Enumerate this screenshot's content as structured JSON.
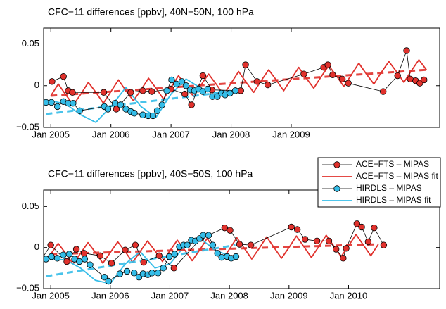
{
  "chart_data": [
    {
      "type": "line",
      "title": "CFC−11 differences [ppbv], 40N−50N, 100 hPa",
      "xlim": [
        2004.88,
        2011.47
      ],
      "ylim": [
        -0.05,
        0.069
      ],
      "xticks": [
        {
          "value": 2005,
          "label": "Jan 2005"
        },
        {
          "value": 2006,
          "label": "Jan 2006"
        },
        {
          "value": 2007,
          "label": "Jan 2007"
        },
        {
          "value": 2008,
          "label": "Jan 2008"
        },
        {
          "value": 2009,
          "label": "Jan 2009"
        }
      ],
      "yticks": [
        {
          "value": -0.05,
          "label": "−0.05"
        },
        0,
        0.05
      ],
      "series": [
        {
          "name": "ACE−FTS – MIPAS",
          "style": "markers",
          "color": "#e0312c",
          "x": [
            2005.02,
            2005.21,
            2005.29,
            2005.36,
            2005.88,
            2006.09,
            2006.33,
            2006.53,
            2006.68,
            2007.0,
            2007.23,
            2007.34,
            2007.53,
            2007.68,
            2008.16,
            2008.24,
            2008.43,
            2008.61,
            2009.21,
            2009.54,
            2009.61,
            2009.69,
            2009.85,
            2009.95,
            2010.53,
            2010.77,
            2010.92,
            2010.98,
            2011.07,
            2011.14,
            2011.21
          ],
          "values": [
            0.005,
            0.011,
            -0.006,
            -0.008,
            -0.008,
            -0.028,
            -0.008,
            -0.006,
            -0.007,
            -0.004,
            -0.01,
            -0.023,
            0.012,
            -0.005,
            -0.006,
            0.025,
            0.005,
            0.001,
            0.014,
            0.022,
            0.025,
            0.013,
            0.008,
            0.003,
            -0.007,
            0.012,
            0.042,
            0.008,
            0.006,
            0.003,
            0.007
          ]
        },
        {
          "name": "ACE−FTS – MIPAS fit",
          "style": "solid",
          "color": "#e0312c",
          "x": [
            2005.0,
            2005.125,
            2005.25,
            2005.375,
            2005.5,
            2005.625,
            2005.75,
            2005.875,
            2006.0,
            2006.125,
            2006.25,
            2006.375,
            2006.5,
            2006.625,
            2006.75,
            2006.875,
            2007.0,
            2007.125,
            2007.25,
            2007.375,
            2007.5,
            2007.625,
            2007.75,
            2007.875,
            2008.0,
            2008.125,
            2008.25,
            2008.375,
            2008.5,
            2008.625,
            2008.75,
            2008.875,
            2009.0,
            2009.125,
            2009.25,
            2009.375,
            2009.5,
            2009.625,
            2009.75,
            2009.875,
            2010.0,
            2010.125,
            2010.25,
            2010.375,
            2010.5,
            2010.625,
            2010.75,
            2010.875,
            2011.0,
            2011.125,
            2011.25
          ],
          "values": [
            -0.012,
            0.002,
            -0.011,
            -0.023,
            -0.01,
            0.004,
            -0.008,
            -0.021,
            -0.007,
            0.007,
            -0.006,
            -0.018,
            -0.005,
            0.009,
            -0.003,
            -0.016,
            -0.002,
            0.012,
            -0.001,
            -0.013,
            0.001,
            0.014,
            0.002,
            -0.011,
            0.003,
            0.017,
            0.004,
            -0.008,
            0.006,
            0.019,
            0.007,
            -0.006,
            0.008,
            0.022,
            0.009,
            -0.003,
            0.011,
            0.024,
            0.012,
            -0.001,
            0.013,
            0.027,
            0.014,
            0.002,
            0.016,
            0.029,
            0.017,
            0.004,
            0.018,
            0.031,
            0.019
          ]
        },
        {
          "style": "dashed",
          "color": "#e0312c",
          "x": [
            2005.0,
            2011.25
          ],
          "values": [
            -0.012,
            0.019
          ]
        },
        {
          "name": "HIRDLS – MIPAS",
          "style": "markers",
          "color": "#35bde8",
          "x": [
            2004.92,
            2005.01,
            2005.11,
            2005.21,
            2005.29,
            2005.37,
            2005.48,
            2005.89,
            2005.95,
            2006.07,
            2006.16,
            2006.25,
            2006.33,
            2006.39,
            2006.53,
            2006.62,
            2006.7,
            2006.77,
            2006.85,
            2006.93,
            2007.01,
            2007.09,
            2007.18,
            2007.25,
            2007.32,
            2007.39,
            2007.46,
            2007.53,
            2007.61,
            2007.69,
            2007.77,
            2007.84,
            2007.9,
            2007.98,
            2008.07
          ],
          "values": [
            -0.02,
            -0.02,
            -0.025,
            -0.019,
            -0.021,
            -0.021,
            -0.03,
            -0.025,
            -0.028,
            -0.021,
            -0.023,
            -0.028,
            -0.031,
            -0.033,
            -0.035,
            -0.036,
            -0.036,
            -0.03,
            -0.023,
            -0.006,
            0.007,
            0.002,
            0.005,
            0.0,
            -0.005,
            -0.006,
            -0.004,
            -0.007,
            -0.004,
            -0.013,
            -0.013,
            -0.009,
            -0.011,
            -0.009,
            -0.006
          ]
        },
        {
          "name": "HIRDLS – MIPAS fit",
          "style": "solid",
          "color": "#35bde8",
          "x": [
            2005.0,
            2005.25,
            2005.5,
            2005.75,
            2006.0,
            2006.25,
            2006.5,
            2006.75,
            2007.0,
            2007.25,
            2007.5,
            2007.75,
            2007.9
          ],
          "values": [
            -0.018,
            -0.022,
            -0.035,
            -0.044,
            -0.025,
            -0.002,
            -0.025,
            -0.038,
            -0.01,
            0.008,
            -0.003,
            -0.008,
            -0.006
          ]
        },
        {
          "style": "dashed",
          "color": "#35bde8",
          "x": [
            2004.92,
            2008.2
          ],
          "values": [
            -0.034,
            -0.005
          ]
        }
      ]
    },
    {
      "type": "line",
      "title": "CFC−11 differences [ppbv], 40S−50S, 100 hPa",
      "xlim": [
        2004.88,
        2011.53
      ],
      "ylim": [
        -0.05,
        0.07
      ],
      "xticks": [
        {
          "value": 2005,
          "label": "Jan 2005"
        },
        {
          "value": 2006,
          "label": "Jan 2006"
        },
        {
          "value": 2007,
          "label": "Jan 2007"
        },
        {
          "value": 2008,
          "label": "Jan 2008"
        },
        {
          "value": 2009,
          "label": "Jan 2009"
        },
        {
          "value": 2010,
          "label": "Jan 2010"
        }
      ],
      "yticks": [
        {
          "value": -0.05,
          "label": "−0.05"
        },
        0,
        0.05
      ],
      "legend": "upper right",
      "series": [
        {
          "name": "ACE−FTS – MIPAS",
          "style": "markers",
          "color": "#e0312c",
          "x": [
            2004.82,
            2005.0,
            2005.27,
            2005.43,
            2005.56,
            2005.83,
            2006.02,
            2006.25,
            2006.42,
            2006.56,
            2006.82,
            2007.07,
            2007.52,
            2007.92,
            2008.01,
            2008.17,
            2008.36,
            2009.04,
            2009.14,
            2009.27,
            2009.47,
            2009.67,
            2009.79,
            2009.91,
            2009.96,
            2010.14,
            2010.22,
            2010.33,
            2010.43,
            2010.59
          ],
          "values": [
            -0.017,
            0.003,
            -0.017,
            -0.002,
            -0.007,
            -0.01,
            -0.019,
            -0.003,
            0.003,
            -0.018,
            -0.01,
            -0.025,
            0.011,
            0.024,
            0.021,
            0.004,
            0.003,
            0.025,
            0.022,
            0.01,
            0.008,
            0.008,
            -0.002,
            -0.013,
            -0.001,
            0.029,
            0.025,
            0.007,
            0.024,
            0.003
          ]
        },
        {
          "name": "ACE−FTS – MIPAS fit",
          "style": "solid",
          "color": "#e0312c",
          "x": [
            2005.0,
            2005.125,
            2005.25,
            2005.375,
            2005.5,
            2005.625,
            2005.75,
            2005.875,
            2006.0,
            2006.125,
            2006.25,
            2006.375,
            2006.5,
            2006.625,
            2006.75,
            2006.875,
            2007.0,
            2007.125,
            2007.25,
            2007.375,
            2007.5,
            2007.625,
            2007.75,
            2007.875,
            2008.0,
            2008.125,
            2008.25,
            2008.375,
            2008.5,
            2008.625,
            2008.75,
            2008.875,
            2009.0,
            2009.125,
            2009.25,
            2009.375,
            2009.5,
            2009.625,
            2009.75,
            2009.875,
            2010.0,
            2010.125,
            2010.25,
            2010.375,
            2010.5
          ],
          "values": [
            -0.008,
            0.005,
            -0.007,
            -0.02,
            -0.007,
            0.006,
            -0.006,
            -0.019,
            -0.006,
            0.007,
            -0.005,
            -0.018,
            -0.005,
            0.008,
            -0.004,
            -0.017,
            -0.004,
            0.009,
            -0.003,
            -0.016,
            -0.003,
            0.011,
            -0.002,
            -0.015,
            -0.002,
            0.012,
            -0.001,
            -0.014,
            -0.001,
            0.013,
            0.0,
            -0.013,
            0.0,
            0.014,
            0.001,
            -0.012,
            0.001,
            0.015,
            0.002,
            -0.011,
            0.002,
            0.016,
            0.003,
            -0.01,
            0.004
          ]
        },
        {
          "style": "dashed",
          "color": "#e0312c",
          "x": [
            2005.0,
            2010.5
          ],
          "values": [
            -0.008,
            0.004
          ]
        },
        {
          "name": "HIRDLS – MIPAS",
          "style": "markers",
          "color": "#35bde8",
          "x": [
            2004.92,
            2005.01,
            2005.11,
            2005.21,
            2005.31,
            2005.4,
            2005.48,
            2005.57,
            2005.66,
            2005.9,
            2005.97,
            2006.16,
            2006.28,
            2006.4,
            2006.48,
            2006.55,
            2006.63,
            2006.7,
            2006.8,
            2006.89,
            2006.99,
            2007.08,
            2007.16,
            2007.23,
            2007.29,
            2007.36,
            2007.43,
            2007.5,
            2007.56,
            2007.65,
            2007.72,
            2007.8,
            2007.87,
            2007.96,
            2008.03,
            2008.11
          ],
          "values": [
            -0.014,
            -0.011,
            -0.013,
            -0.009,
            -0.008,
            -0.014,
            -0.017,
            -0.014,
            -0.021,
            -0.036,
            -0.041,
            -0.032,
            -0.029,
            -0.031,
            -0.036,
            -0.032,
            -0.033,
            -0.031,
            -0.031,
            -0.025,
            -0.011,
            -0.008,
            0.001,
            0.003,
            0.003,
            0.009,
            0.008,
            0.011,
            0.015,
            0.015,
            0.003,
            -0.007,
            -0.012,
            -0.011,
            -0.013,
            -0.011
          ]
        },
        {
          "name": "HIRDLS – MIPAS fit",
          "style": "solid",
          "color": "#35bde8",
          "x": [
            2005.0,
            2005.25,
            2005.5,
            2005.75,
            2006.0,
            2006.25,
            2006.5,
            2006.75,
            2007.0,
            2007.25,
            2007.5,
            2007.75,
            2008.0
          ],
          "values": [
            -0.014,
            -0.015,
            -0.025,
            -0.04,
            -0.044,
            -0.02,
            -0.005,
            -0.025,
            -0.02,
            0.002,
            0.012,
            -0.003,
            -0.01
          ]
        },
        {
          "style": "dashed",
          "color": "#35bde8",
          "x": [
            2004.92,
            2008.1
          ],
          "values": [
            -0.035,
            0.003
          ]
        }
      ]
    }
  ]
}
